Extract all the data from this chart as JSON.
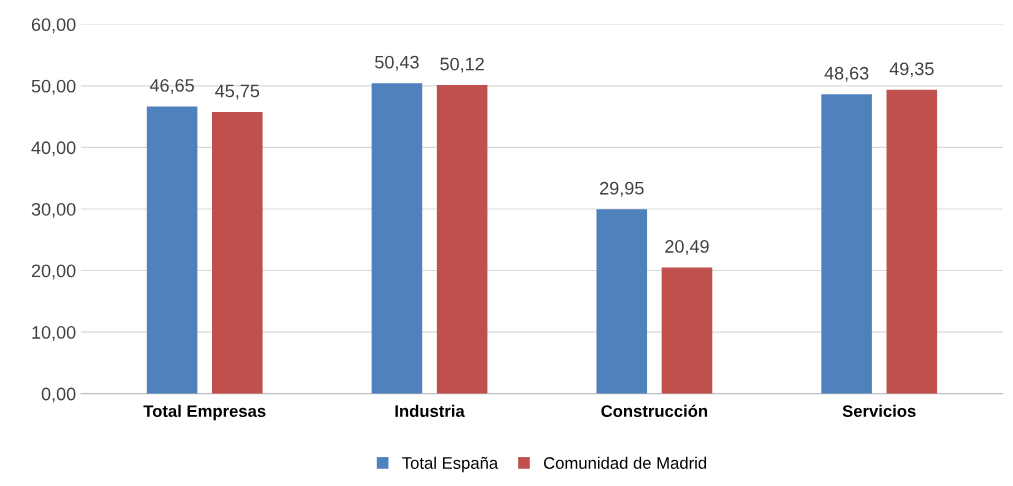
{
  "chart_data": {
    "type": "bar",
    "categories": [
      "Total Empresas",
      "Industria",
      "Construcción",
      "Servicios"
    ],
    "series": [
      {
        "name": "Total España",
        "color": "#4f81bd",
        "values": [
          46.65,
          50.43,
          29.95,
          48.63
        ],
        "value_labels": [
          "46,65",
          "50,43",
          "29,95",
          "48,63"
        ]
      },
      {
        "name": "Comunidad de Madrid",
        "color": "#c0504d",
        "values": [
          45.75,
          50.12,
          20.49,
          49.35
        ],
        "value_labels": [
          "45,75",
          "50,12",
          "20,49",
          "49,35"
        ]
      }
    ],
    "ylim": [
      0,
      60
    ],
    "yticks": [
      {
        "value": 0,
        "label": "0,00"
      },
      {
        "value": 10,
        "label": "10,00"
      },
      {
        "value": 20,
        "label": "20,00"
      },
      {
        "value": 30,
        "label": "30,00"
      },
      {
        "value": 40,
        "label": "40,00"
      },
      {
        "value": 50,
        "label": "50,00"
      },
      {
        "value": 60,
        "label": "60,00"
      }
    ],
    "grid": "y",
    "legend": "bottom"
  }
}
